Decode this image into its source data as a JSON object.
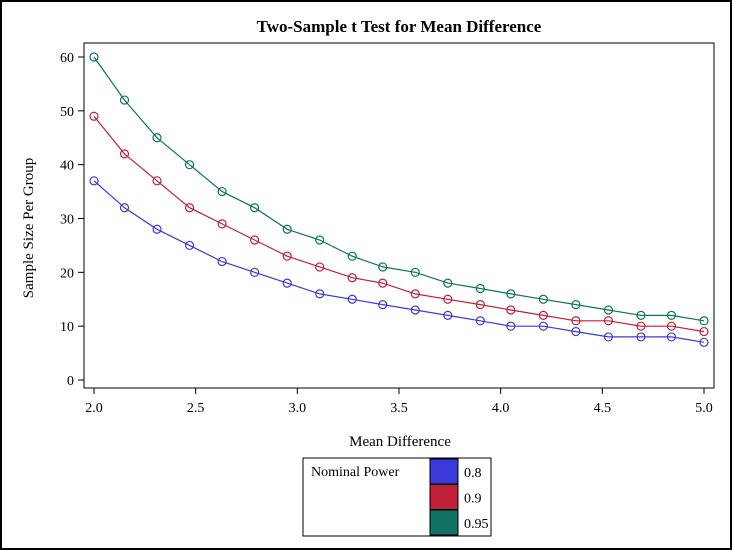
{
  "chart_data": {
    "type": "line",
    "title": "Two-Sample t Test for Mean Difference",
    "xlabel": "Mean Difference",
    "ylabel": "Sample Size Per Group",
    "xlim": [
      2.0,
      5.0
    ],
    "ylim": [
      0,
      60
    ],
    "xticks": [
      "2.0",
      "2.5",
      "3.0",
      "3.5",
      "4.0",
      "4.5",
      "5.0"
    ],
    "yticks": [
      "0",
      "10",
      "20",
      "30",
      "40",
      "50",
      "60"
    ],
    "x": [
      2.0,
      2.15,
      2.31,
      2.47,
      2.63,
      2.79,
      2.95,
      3.11,
      3.27,
      3.42,
      3.58,
      3.74,
      3.9,
      4.05,
      4.21,
      4.37,
      4.53,
      4.69,
      4.84,
      5.0
    ],
    "series": [
      {
        "name": "0.8",
        "color": "#3a3adc",
        "values": [
          37,
          32,
          28,
          25,
          22,
          20,
          18,
          16,
          15,
          14,
          13,
          12,
          11,
          10,
          10,
          9,
          8,
          8,
          8,
          7
        ]
      },
      {
        "name": "0.9",
        "color": "#c0203a",
        "values": [
          49,
          42,
          37,
          32,
          29,
          26,
          23,
          21,
          19,
          18,
          16,
          15,
          14,
          13,
          12,
          11,
          11,
          10,
          10,
          9
        ]
      },
      {
        "name": "0.95",
        "color": "#0f7262",
        "values": [
          60,
          52,
          45,
          40,
          35,
          32,
          28,
          26,
          23,
          21,
          20,
          18,
          17,
          16,
          15,
          14,
          13,
          12,
          12,
          11
        ]
      }
    ],
    "legend": {
      "title": "Nominal Power",
      "placement": "bottom-center"
    },
    "grid": false,
    "marker": "open-circle"
  }
}
